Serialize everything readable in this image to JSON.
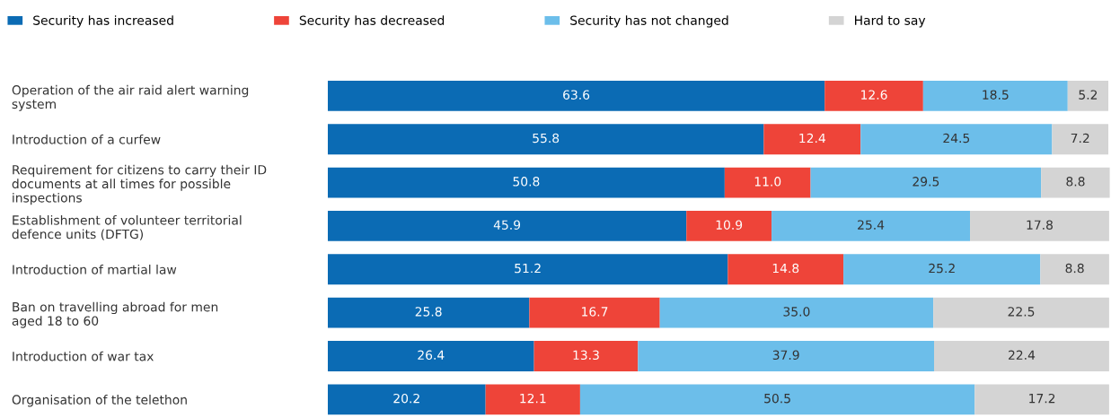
{
  "chart_data": {
    "type": "bar",
    "orientation": "horizontal",
    "stacked": true,
    "legend": "top",
    "grid": false,
    "categories": [
      "Operation of the air raid alert warning\nsystem",
      "Introduction of a curfew",
      "Requirement for citizens to carry their ID\ndocuments at all times for possible\ninspections",
      "Establishment of volunteer territorial\ndefence units (DFTG)",
      "Introduction of martial law",
      "Ban on travelling abroad for men\naged 18 to 60",
      "Introduction of war tax",
      "Organisation of the telethon"
    ],
    "series": [
      {
        "name": "Security has increased",
        "color": "#0b6bb4",
        "values": [
          63.6,
          55.8,
          50.8,
          45.9,
          51.2,
          25.8,
          26.4,
          20.2
        ],
        "value_labels": [
          "63.6",
          "55.8",
          "50.8",
          "45.9",
          "51.2",
          "25.8",
          "26.4",
          "20.2"
        ]
      },
      {
        "name": "Security has decreased",
        "color": "#ee4439",
        "values": [
          12.6,
          12.4,
          11.0,
          10.9,
          14.8,
          16.7,
          13.3,
          12.1
        ],
        "value_labels": [
          "12.6",
          "12.4",
          "11.0",
          "10.9",
          "14.8",
          "16.7",
          "13.3",
          "12.1"
        ]
      },
      {
        "name": "Security has not changed",
        "color": "#6cbeea",
        "values": [
          18.5,
          24.5,
          29.5,
          25.4,
          25.2,
          35.0,
          37.9,
          50.5
        ],
        "value_labels": [
          "18.5",
          "24.5",
          "29.5",
          "25.4",
          "25.2",
          "35.0",
          "37.9",
          "50.5"
        ]
      },
      {
        "name": "Hard to say",
        "color": "#d4d4d4",
        "values": [
          5.2,
          7.2,
          8.8,
          17.8,
          8.8,
          22.5,
          22.4,
          17.2
        ],
        "value_labels": [
          "5.2",
          "7.2",
          "8.8",
          "17.8",
          "8.8",
          "22.5",
          "22.4",
          "17.2"
        ]
      }
    ]
  }
}
